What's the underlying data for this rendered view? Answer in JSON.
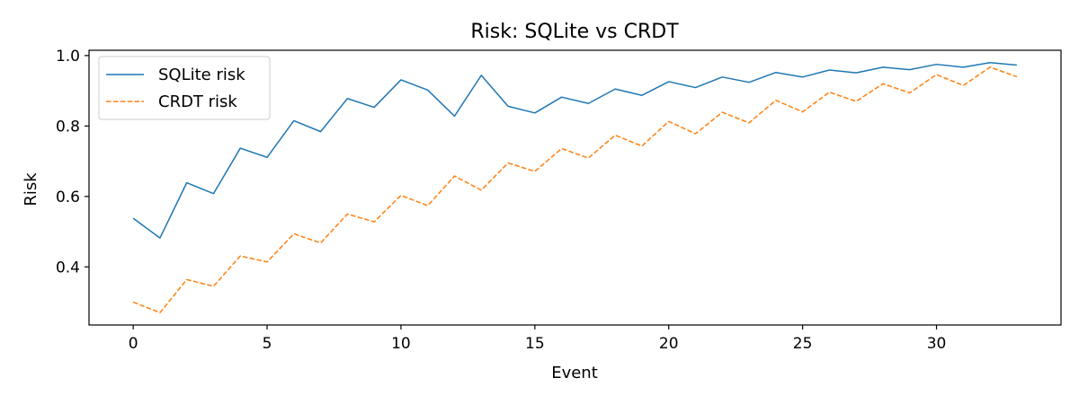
{
  "chart_data": {
    "type": "line",
    "title": "Risk: SQLite vs CRDT",
    "xlabel": "Event",
    "ylabel": "Risk",
    "xlim": [
      -1.65,
      34.65
    ],
    "ylim": [
      0.235,
      1.015
    ],
    "xticks": [
      0,
      5,
      10,
      15,
      20,
      25,
      30
    ],
    "xtick_labels": [
      "0",
      "5",
      "10",
      "15",
      "20",
      "25",
      "30"
    ],
    "yticks": [
      0.4,
      0.6,
      0.8,
      1.0
    ],
    "ytick_labels": [
      "0.4",
      "0.6",
      "0.8",
      "1.0"
    ],
    "grid": false,
    "legend_position": "top-left",
    "x": [
      0,
      1,
      2,
      3,
      4,
      5,
      6,
      7,
      8,
      9,
      10,
      11,
      12,
      13,
      14,
      15,
      16,
      17,
      18,
      19,
      20,
      21,
      22,
      23,
      24,
      25,
      26,
      27,
      28,
      29,
      30,
      31,
      32,
      33
    ],
    "series": [
      {
        "name": "SQLite risk",
        "color": "#1f77b4",
        "line_style": "solid",
        "values": [
          0.538,
          0.482,
          0.639,
          0.608,
          0.737,
          0.711,
          0.815,
          0.784,
          0.878,
          0.853,
          0.931,
          0.902,
          0.828,
          0.944,
          0.856,
          0.837,
          0.882,
          0.864,
          0.905,
          0.887,
          0.926,
          0.909,
          0.939,
          0.924,
          0.952,
          0.939,
          0.959,
          0.951,
          0.967,
          0.96,
          0.975,
          0.967,
          0.98,
          0.973
        ]
      },
      {
        "name": "CRDT risk",
        "color": "#ff7f0e",
        "line_style": "dashed",
        "values": [
          0.3,
          0.27,
          0.364,
          0.345,
          0.431,
          0.414,
          0.494,
          0.468,
          0.55,
          0.528,
          0.603,
          0.574,
          0.658,
          0.618,
          0.695,
          0.671,
          0.736,
          0.709,
          0.774,
          0.743,
          0.813,
          0.778,
          0.839,
          0.809,
          0.873,
          0.84,
          0.896,
          0.87,
          0.92,
          0.894,
          0.946,
          0.915,
          0.967,
          0.94
        ]
      }
    ]
  }
}
